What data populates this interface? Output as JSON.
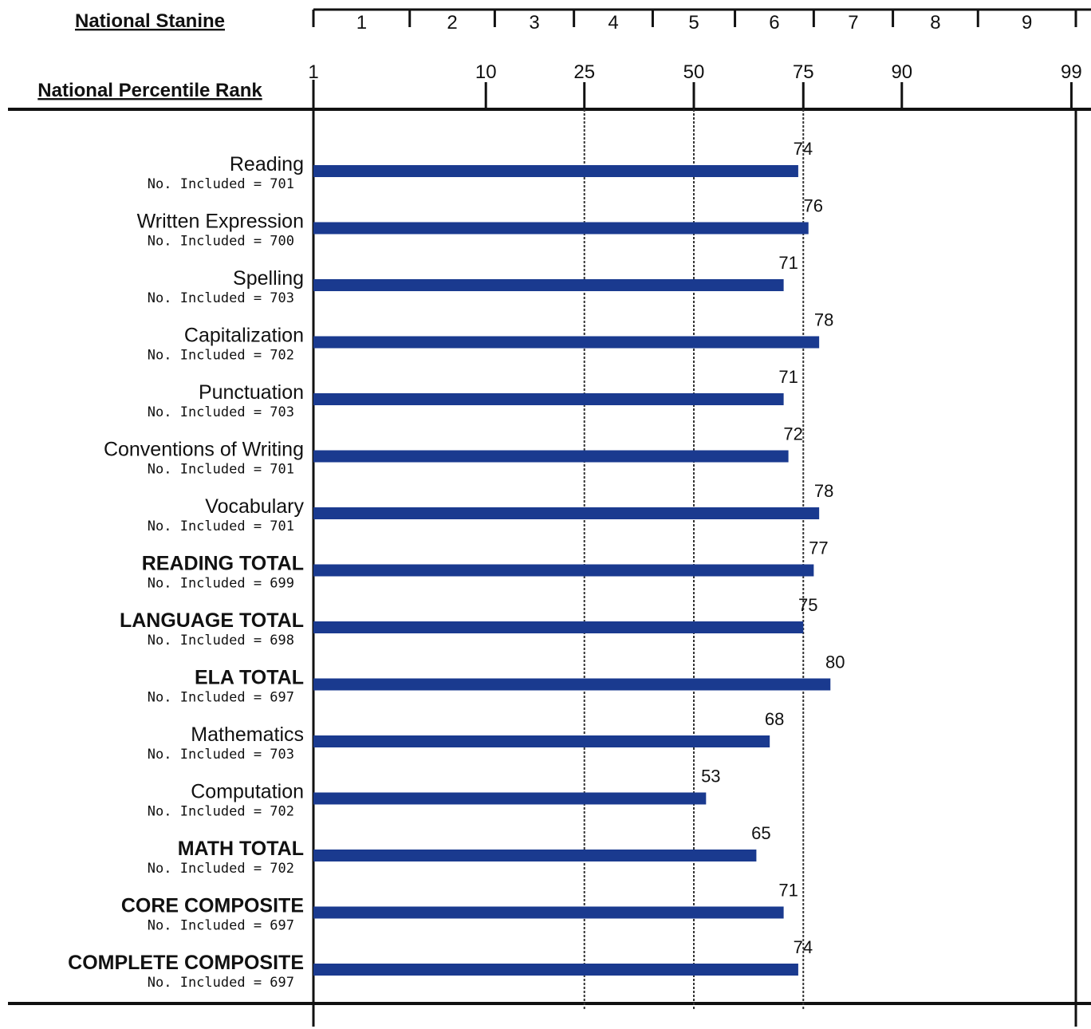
{
  "headers": {
    "stanine": "National Stanine",
    "percentile": "National Percentile Rank"
  },
  "chart_data": {
    "type": "bar",
    "orientation": "horizontal",
    "x_scale": "normal-curve percentile",
    "xlim": [
      1,
      99
    ],
    "stanines": [
      "1",
      "2",
      "3",
      "4",
      "5",
      "6",
      "7",
      "8",
      "9"
    ],
    "stanine_boundaries": [
      4,
      11,
      23,
      40,
      60,
      77,
      89,
      96
    ],
    "percentile_ticks": [
      1,
      10,
      25,
      50,
      75,
      90,
      99
    ],
    "reference_lines": [
      25,
      50,
      75
    ],
    "bar_color": "#1a3a8f",
    "categories": [
      {
        "label": "Reading",
        "bold": false,
        "included": "No. Included = 701",
        "value": 74
      },
      {
        "label": "Written Expression",
        "bold": false,
        "included": "No. Included = 700",
        "value": 76
      },
      {
        "label": "Spelling",
        "bold": false,
        "included": "No. Included = 703",
        "value": 71
      },
      {
        "label": "Capitalization",
        "bold": false,
        "included": "No. Included = 702",
        "value": 78
      },
      {
        "label": "Punctuation",
        "bold": false,
        "included": "No. Included = 703",
        "value": 71
      },
      {
        "label": "Conventions of Writing",
        "bold": false,
        "included": "No. Included = 701",
        "value": 72
      },
      {
        "label": "Vocabulary",
        "bold": false,
        "included": "No. Included = 701",
        "value": 78
      },
      {
        "label": "READING TOTAL",
        "bold": true,
        "included": "No. Included = 699",
        "value": 77
      },
      {
        "label": "LANGUAGE TOTAL",
        "bold": true,
        "included": "No. Included = 698",
        "value": 75
      },
      {
        "label": "ELA TOTAL",
        "bold": true,
        "included": "No. Included = 697",
        "value": 80
      },
      {
        "label": "Mathematics",
        "bold": false,
        "included": "No. Included = 703",
        "value": 68
      },
      {
        "label": "Computation",
        "bold": false,
        "included": "No. Included = 702",
        "value": 53
      },
      {
        "label": "MATH TOTAL",
        "bold": true,
        "included": "No. Included = 702",
        "value": 65
      },
      {
        "label": "CORE COMPOSITE",
        "bold": true,
        "included": "No. Included = 697",
        "value": 71
      },
      {
        "label": "COMPLETE COMPOSITE",
        "bold": true,
        "included": "No. Included = 697",
        "value": 74
      }
    ]
  }
}
